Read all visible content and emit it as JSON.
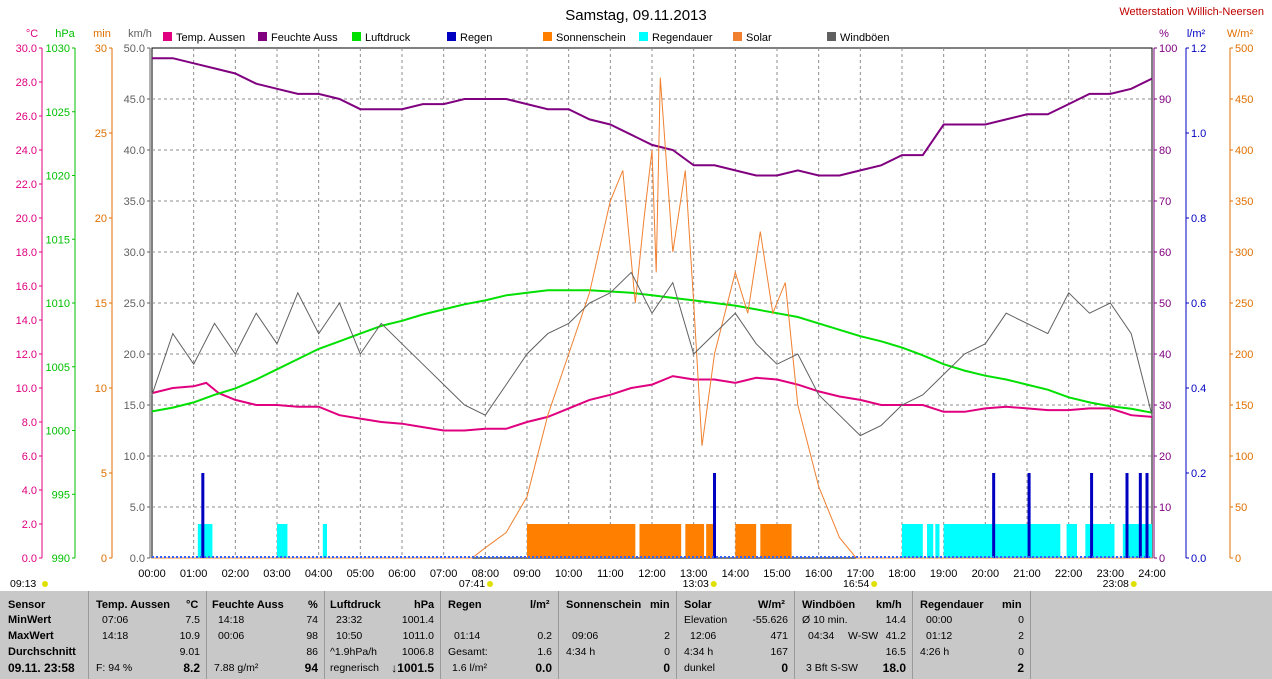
{
  "header": {
    "title": "Samstag, 09.11.2013",
    "station": "Wetterstation Willich-Neersen"
  },
  "chart_data": {
    "type": "line",
    "x_ticks": [
      "00:00",
      "01:00",
      "02:00",
      "03:00",
      "04:00",
      "05:00",
      "06:00",
      "07:00",
      "08:00",
      "09:00",
      "10:00",
      "11:00",
      "12:00",
      "13:00",
      "14:00",
      "15:00",
      "16:00",
      "17:00",
      "18:00",
      "19:00",
      "20:00",
      "21:00",
      "22:00",
      "23:00",
      "24:00"
    ],
    "xlim_hours": [
      0,
      24
    ],
    "grid": true,
    "legend_position": "top",
    "time_markers": [
      {
        "label": "09:13",
        "hour": 0.0,
        "color": "#e0e000"
      },
      {
        "label": "07:41",
        "hour": 7.68,
        "color": "#e0e000"
      },
      {
        "label": "13:03",
        "hour": 13.05,
        "color": "#e0e000"
      },
      {
        "label": "16:54",
        "hour": 16.9,
        "color": "#e0e000"
      },
      {
        "label": "23:08",
        "hour": 23.13,
        "color": "#e0e000"
      }
    ],
    "axes_left": [
      {
        "unit": "°C",
        "color": "#e0007f",
        "ticks": [
          "0.0",
          "2.0",
          "4.0",
          "6.0",
          "8.0",
          "10.0",
          "12.0",
          "14.0",
          "16.0",
          "18.0",
          "20.0",
          "22.0",
          "24.0",
          "26.0",
          "28.0",
          "30.0"
        ]
      },
      {
        "unit": "hPa",
        "color": "#00c000",
        "ticks": [
          "990",
          "995",
          "1000",
          "1005",
          "1010",
          "1015",
          "1020",
          "1025",
          "1030"
        ]
      },
      {
        "unit": "min",
        "color": "#e07000",
        "ticks": [
          "0",
          "5",
          "10",
          "15",
          "20",
          "25",
          "30"
        ]
      },
      {
        "unit": "km/h",
        "color": "#606060",
        "ticks": [
          "0.0",
          "5.0",
          "10.0",
          "15.0",
          "20.0",
          "25.0",
          "30.0",
          "35.0",
          "40.0",
          "45.0",
          "50.0"
        ]
      }
    ],
    "axes_right": [
      {
        "unit": "%",
        "color": "#800080",
        "ticks": [
          "0",
          "10",
          "20",
          "30",
          "40",
          "50",
          "60",
          "70",
          "80",
          "90",
          "100"
        ]
      },
      {
        "unit": "l/m²",
        "color": "#0000c0",
        "ticks": [
          "0.0",
          "0.2",
          "0.4",
          "0.6",
          "0.8",
          "1.0",
          "1.2"
        ]
      },
      {
        "unit": "W/m²",
        "color": "#e07000",
        "ticks": [
          "0",
          "50",
          "100",
          "150",
          "200",
          "250",
          "300",
          "350",
          "400",
          "450",
          "500"
        ]
      }
    ],
    "series": [
      {
        "name": "Temp. Aussen",
        "color": "#e0007f",
        "axis": "°C",
        "ylim": [
          0,
          30
        ],
        "x": [
          0,
          0.5,
          1,
          1.3,
          1.6,
          2,
          2.5,
          3,
          3.5,
          4,
          4.5,
          5,
          5.5,
          6,
          6.5,
          7,
          7.5,
          8,
          8.5,
          9,
          9.5,
          10,
          10.5,
          11,
          11.5,
          12,
          12.5,
          13,
          13.5,
          14,
          14.5,
          15,
          15.5,
          16,
          16.5,
          17,
          17.5,
          18,
          18.5,
          19,
          19.5,
          20,
          20.5,
          21,
          21.5,
          22,
          22.5,
          23,
          23.5,
          24
        ],
        "y": [
          9.7,
          10.0,
          10.1,
          10.3,
          9.7,
          9.3,
          9.0,
          9.0,
          8.9,
          8.9,
          8.4,
          8.2,
          8.0,
          7.9,
          7.7,
          7.5,
          7.5,
          7.6,
          7.6,
          8.0,
          8.3,
          8.8,
          9.3,
          9.6,
          10.0,
          10.2,
          10.7,
          10.5,
          10.5,
          10.3,
          10.6,
          10.5,
          10.2,
          9.8,
          9.5,
          9.3,
          9.0,
          9.0,
          9.0,
          8.6,
          8.6,
          8.8,
          8.9,
          8.8,
          8.7,
          8.7,
          8.8,
          8.8,
          8.4,
          8.3
        ]
      },
      {
        "name": "Feuchte Auss",
        "color": "#800080",
        "axis": "%",
        "ylim": [
          0,
          100
        ],
        "x": [
          0,
          0.5,
          1,
          1.5,
          2,
          2.5,
          3,
          3.5,
          4,
          4.5,
          5,
          5.5,
          6,
          6.5,
          7,
          7.5,
          8,
          8.5,
          9,
          9.5,
          10,
          10.5,
          11,
          11.5,
          12,
          12.5,
          13,
          13.5,
          14,
          14.5,
          15,
          15.5,
          16,
          16.5,
          17,
          17.5,
          18,
          18.5,
          19,
          19.5,
          20,
          20.5,
          21,
          21.5,
          22,
          22.5,
          23,
          23.5,
          24
        ],
        "y": [
          98,
          98,
          97,
          96,
          95,
          93,
          92,
          91,
          91,
          90,
          88,
          88,
          88,
          89,
          89,
          90,
          90,
          90,
          89,
          88,
          88,
          86,
          85,
          83,
          81,
          80,
          77,
          77,
          76,
          75,
          75,
          76,
          75,
          75,
          76,
          77,
          79,
          79,
          85,
          85,
          85,
          86,
          87,
          87,
          89,
          91,
          91,
          92,
          94
        ]
      },
      {
        "name": "Luftdruck",
        "color": "#00e000",
        "axis": "hPa",
        "ylim": [
          990,
          1030
        ],
        "x": [
          0,
          0.5,
          1,
          1.5,
          2,
          2.5,
          3,
          3.5,
          4,
          4.5,
          5,
          5.5,
          6,
          6.5,
          7,
          7.5,
          8,
          8.5,
          9,
          9.5,
          10,
          10.5,
          11,
          11.5,
          12,
          12.5,
          13,
          13.5,
          14,
          14.5,
          15,
          15.5,
          16,
          16.5,
          17,
          17.5,
          18,
          18.5,
          19,
          19.5,
          20,
          20.5,
          21,
          21.5,
          22,
          22.5,
          23,
          23.5,
          24
        ],
        "y": [
          1001.5,
          1001.8,
          1002.2,
          1002.8,
          1003.3,
          1004.0,
          1004.8,
          1005.6,
          1006.4,
          1007.0,
          1007.6,
          1008.2,
          1008.6,
          1009.1,
          1009.5,
          1009.9,
          1010.2,
          1010.6,
          1010.8,
          1011.0,
          1011.0,
          1011.0,
          1010.9,
          1010.8,
          1010.6,
          1010.4,
          1010.2,
          1010.0,
          1009.8,
          1009.5,
          1009.2,
          1008.9,
          1008.4,
          1007.9,
          1007.4,
          1007.0,
          1006.5,
          1005.9,
          1005.2,
          1004.7,
          1004.3,
          1004.0,
          1003.6,
          1003.2,
          1002.6,
          1002.2,
          1001.9,
          1001.7,
          1001.4
        ]
      },
      {
        "name": "Solar",
        "color": "#f08030",
        "axis": "W/m²",
        "ylim": [
          0,
          500
        ],
        "x": [
          0,
          7.68,
          8,
          8.5,
          9,
          9.5,
          10,
          10.5,
          11,
          11.3,
          11.6,
          11.8,
          12,
          12.1,
          12.2,
          12.5,
          12.8,
          13,
          13.2,
          13.5,
          14,
          14.3,
          14.6,
          14.9,
          15.2,
          15.5,
          16,
          16.5,
          16.9,
          17,
          24
        ],
        "y": [
          0,
          0,
          10,
          25,
          60,
          140,
          200,
          260,
          350,
          380,
          250,
          330,
          400,
          280,
          471,
          300,
          380,
          250,
          110,
          200,
          280,
          240,
          320,
          240,
          270,
          150,
          70,
          20,
          0,
          0,
          0
        ]
      },
      {
        "name": "Windböen",
        "color": "#606060",
        "axis": "km/h",
        "ylim": [
          0,
          50
        ],
        "x": [
          0,
          0.5,
          1,
          1.5,
          2,
          2.5,
          3,
          3.5,
          4,
          4.5,
          5,
          5.5,
          6,
          6.5,
          7,
          7.5,
          8,
          8.5,
          9,
          9.5,
          10,
          10.5,
          11,
          11.5,
          12,
          12.5,
          13,
          13.5,
          14,
          14.5,
          15,
          15.5,
          16,
          16.5,
          17,
          17.5,
          18,
          18.5,
          19,
          19.5,
          20,
          20.5,
          21,
          21.5,
          22,
          22.5,
          23,
          23.5,
          24
        ],
        "y": [
          16,
          22,
          19,
          23,
          20,
          24,
          21,
          26,
          22,
          25,
          20,
          23,
          21,
          19,
          17,
          15,
          14,
          17,
          20,
          22,
          23,
          25,
          26,
          28,
          24,
          27,
          20,
          22,
          24,
          21,
          19,
          20,
          16,
          14,
          12,
          13,
          15,
          16,
          18,
          20,
          21,
          24,
          23,
          22,
          26,
          24,
          25,
          22,
          14
        ]
      },
      {
        "name": "Regen",
        "color": "#0000c0",
        "axis": "l/m²",
        "ylim": [
          0,
          1.2
        ],
        "kind": "bars",
        "x": [
          1.22,
          13.5,
          20.2,
          21.05,
          22.55,
          23.4,
          23.72,
          23.88
        ],
        "y": [
          0.2,
          0.2,
          0.2,
          0.2,
          0.2,
          0.2,
          0.2,
          0.2
        ]
      },
      {
        "name": "Sonnenschein",
        "color": "#ff8000",
        "axis": "min",
        "ylim": [
          0,
          30
        ],
        "kind": "blocks",
        "blocks": [
          [
            9.0,
            11.6
          ],
          [
            11.7,
            12.7
          ],
          [
            12.8,
            13.25
          ],
          [
            13.3,
            13.5
          ],
          [
            14.0,
            14.5
          ],
          [
            14.6,
            15.35
          ]
        ],
        "height": 2
      },
      {
        "name": "Regendauer",
        "color": "#00ffff",
        "axis": "min",
        "ylim": [
          0,
          30
        ],
        "kind": "blocks",
        "blocks": [
          [
            1.1,
            1.45
          ],
          [
            3.0,
            3.25
          ],
          [
            4.1,
            4.2
          ],
          [
            18.0,
            18.5
          ],
          [
            18.6,
            18.75
          ],
          [
            18.8,
            18.9
          ],
          [
            19.0,
            21.8
          ],
          [
            21.95,
            22.2
          ],
          [
            22.4,
            23.1
          ],
          [
            23.3,
            24.0
          ]
        ],
        "height": 2
      }
    ]
  },
  "panel": {
    "sensor": {
      "header": "Sensor",
      "rows": [
        "MinWert",
        "MaxWert",
        "Durchschnitt",
        "09.11.  23:58"
      ]
    },
    "temp": {
      "header": "Temp. Aussen",
      "unit": "°C",
      "r1t": "07:06",
      "r1v": "7.5",
      "r2t": "14:18",
      "r2v": "10.9",
      "r3v": "9.01",
      "r4t": "F: 94 %",
      "r4v": "8.2"
    },
    "feuchte": {
      "header": "Feuchte Auss",
      "unit": "%",
      "r1t": "14:18",
      "r1v": "74",
      "r2t": "00:06",
      "r2v": "98",
      "r3v": "86",
      "r4t": "7.88 g/m²",
      "r4v": "94"
    },
    "luftdruck": {
      "header": "Luftdruck",
      "unit": "hPa",
      "r1t": "23:32",
      "r1v": "1001.4",
      "r2t": "10:50",
      "r2v": "1011.0",
      "r3t": "^1.9hPa/h",
      "r3v": "1006.8",
      "r4t": "regnerisch",
      "r4v": "↓1001.5"
    },
    "regen": {
      "header": "Regen",
      "unit": "l/m²",
      "r2t": "01:14",
      "r2v": "0.2",
      "r3t": "Gesamt:",
      "r3v": "1.6",
      "r4t": "1.6 l/m²",
      "r4v": "0.0"
    },
    "sonne": {
      "header": "Sonnenschein",
      "unit": "min",
      "r2t": "09:06",
      "r2v": "2",
      "r3t": "4:34 h",
      "r3v": "0",
      "r4v": "0"
    },
    "solar": {
      "header": "Solar",
      "unit": "W/m²",
      "r1t": "Elevation",
      "r1v": "-55.626",
      "r2t": "12:06",
      "r2v": "471",
      "r3t": "4:34 h",
      "r3v": "167",
      "r4t": "dunkel",
      "r4v": "0"
    },
    "wind": {
      "header": "Windböen",
      "unit": "km/h",
      "r1t": "Ø 10 min.",
      "r1v": "14.4",
      "r2t": "04:34",
      "r2m": "W-SW",
      "r2v": "41.2",
      "r3v": "16.5",
      "r4t": "3 Bft S-SW",
      "r4v": "18.0"
    },
    "regendauer": {
      "header": "Regendauer",
      "unit": "min",
      "r1t": "00:00",
      "r1v": "0",
      "r2t": "01:12",
      "r2v": "2",
      "r3t": "4:26 h",
      "r3v": "0",
      "r4v": "2"
    }
  }
}
